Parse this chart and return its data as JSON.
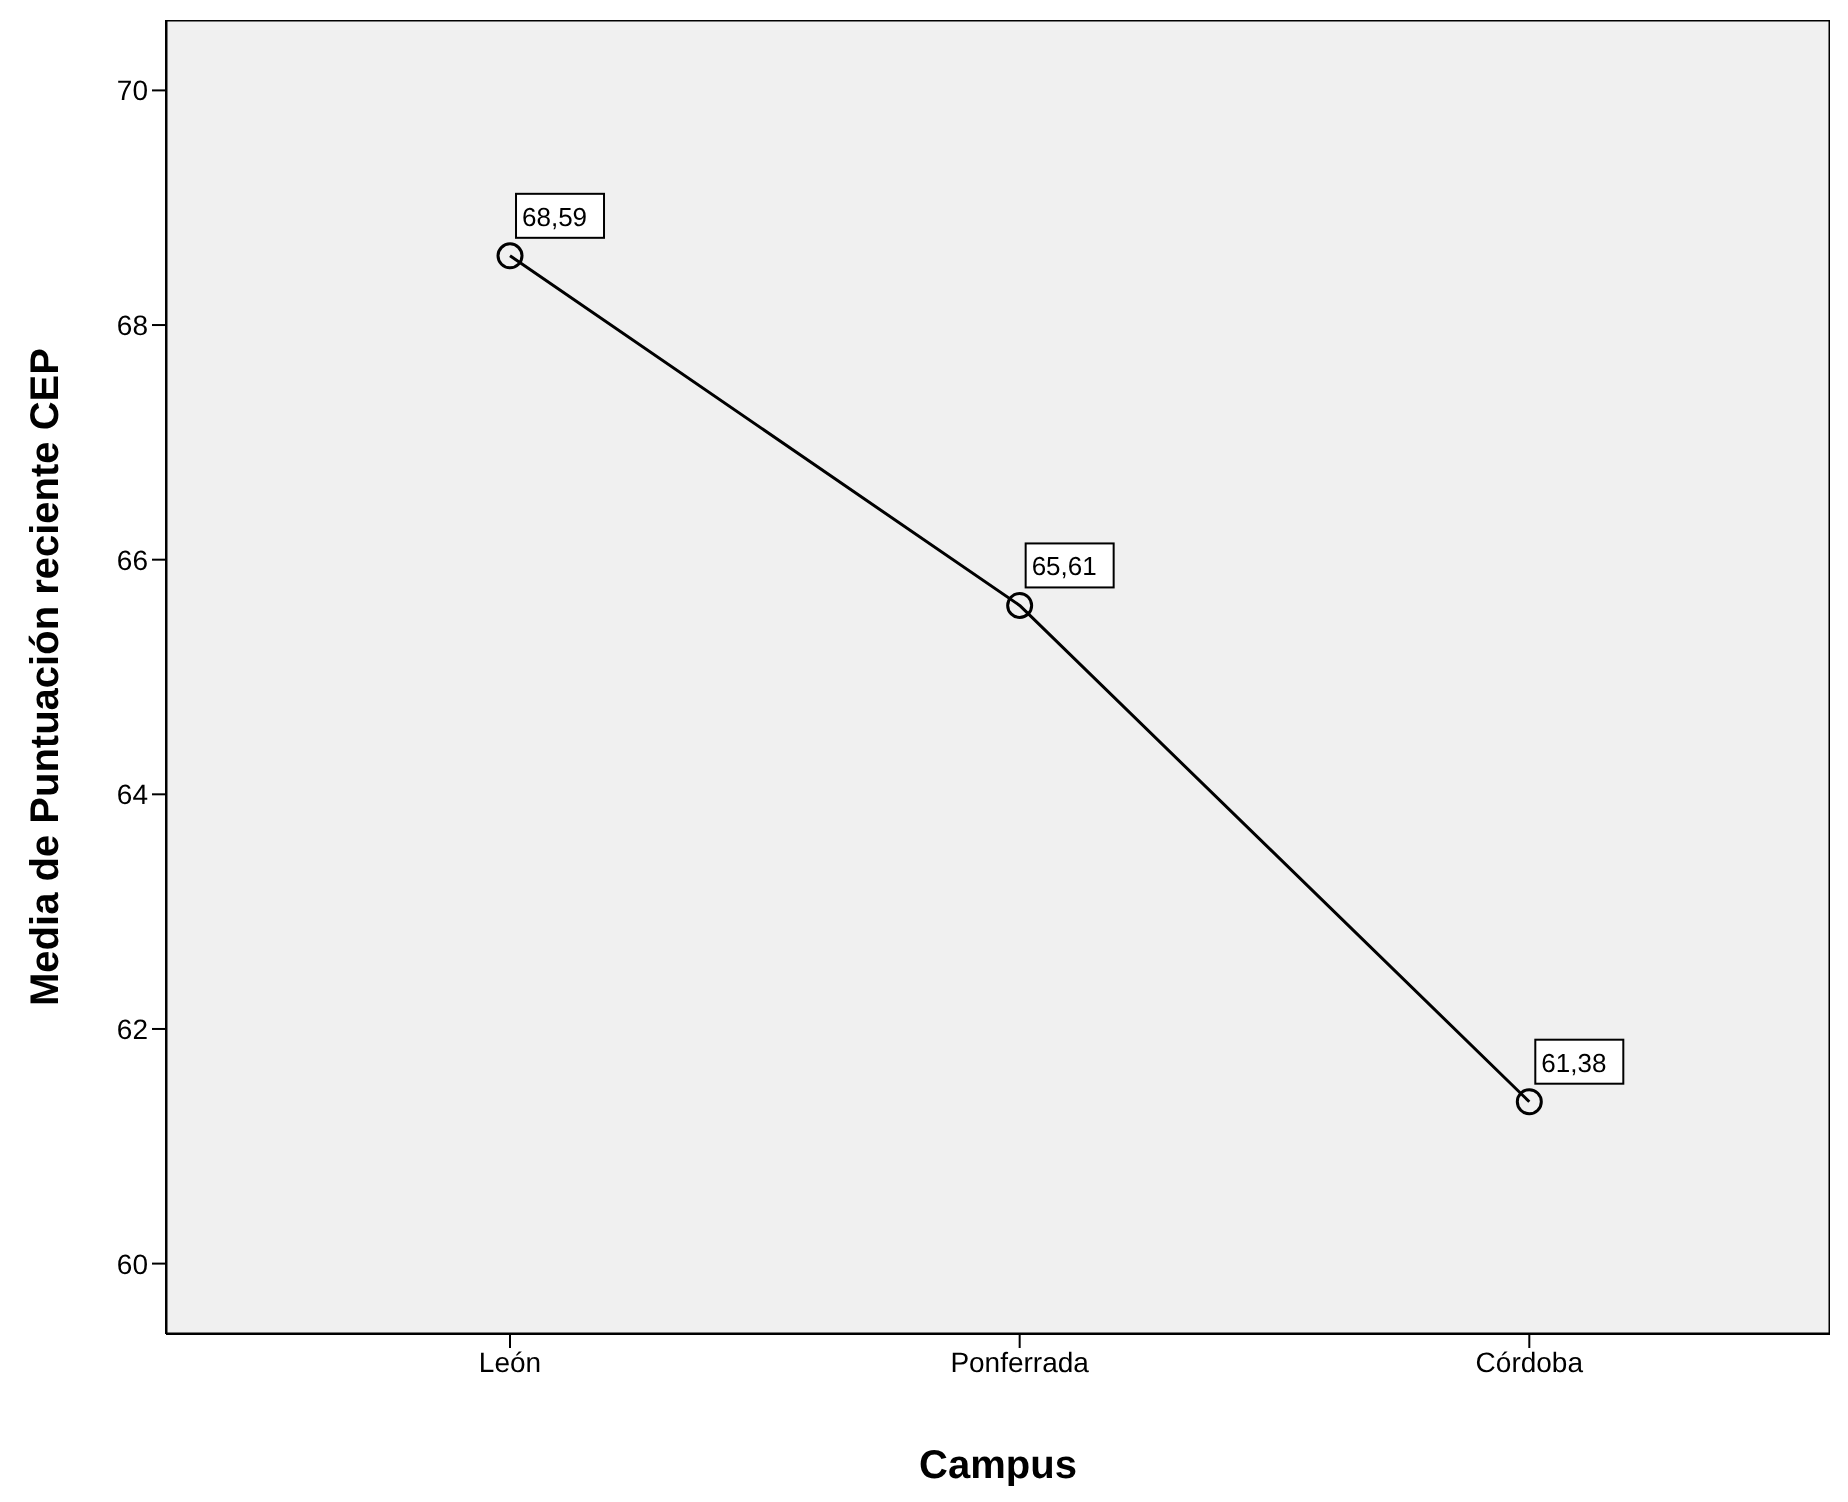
{
  "chart_data": {
    "type": "line",
    "xlabel": "Campus",
    "ylabel": "Media de Puntuación reciente CEP",
    "categories": [
      "León",
      "Ponferrada",
      "Córdoba"
    ],
    "series": [
      {
        "color": "#000000",
        "values": [
          68.59,
          65.61,
          61.38
        ],
        "value_labels": [
          "68,59",
          "65,61",
          "61,38"
        ]
      }
    ],
    "ylim": [
      59.4,
      70.6
    ],
    "yticks": [
      60,
      62,
      64,
      66,
      68,
      70
    ],
    "grid": false,
    "legend": false,
    "marker": "circle",
    "line_style": "solid"
  }
}
